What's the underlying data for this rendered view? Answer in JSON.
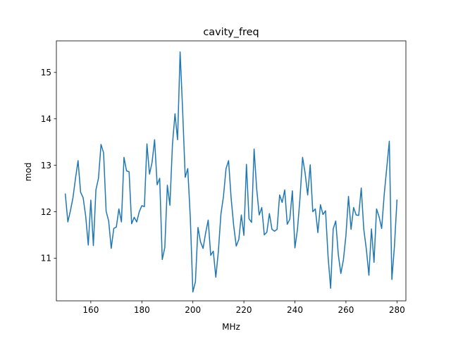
{
  "chart_data": {
    "type": "line",
    "title": "cavity_freq",
    "xlabel": "MHz",
    "ylabel": "mod",
    "xlim": [
      146.5,
      283.5
    ],
    "ylim": [
      10.08,
      15.68
    ],
    "x_ticks": [
      160,
      180,
      200,
      220,
      240,
      260,
      280
    ],
    "y_ticks": [
      11,
      12,
      13,
      14,
      15
    ],
    "grid": false,
    "series": [
      {
        "color": "#1f77b4",
        "x": [
          150,
          151,
          152,
          153,
          154,
          155,
          156,
          157,
          158,
          159,
          160,
          161,
          162,
          163,
          164,
          165,
          166,
          167,
          168,
          169,
          170,
          171,
          172,
          173,
          174,
          175,
          176,
          177,
          178,
          179,
          180,
          181,
          182,
          183,
          184,
          185,
          186,
          187,
          188,
          189,
          190,
          191,
          192,
          193,
          194,
          195,
          196,
          197,
          198,
          199,
          200,
          201,
          202,
          203,
          204,
          205,
          206,
          207,
          208,
          209,
          210,
          211,
          212,
          213,
          214,
          215,
          216,
          217,
          218,
          219,
          220,
          221,
          222,
          223,
          224,
          225,
          226,
          227,
          228,
          229,
          230,
          231,
          232,
          233,
          234,
          235,
          236,
          237,
          238,
          239,
          240,
          241,
          242,
          243,
          244,
          245,
          246,
          247,
          248,
          249,
          250,
          251,
          252,
          253,
          254,
          255,
          256,
          257,
          258,
          259,
          260,
          261,
          262,
          263,
          264,
          265,
          266,
          267,
          268,
          269,
          270,
          271,
          272,
          273,
          274,
          275,
          276,
          277,
          278,
          279,
          280
        ],
        "y": [
          12.38,
          11.78,
          12.02,
          12.3,
          12.72,
          13.1,
          12.42,
          12.3,
          11.9,
          11.28,
          12.25,
          11.27,
          12.47,
          12.72,
          13.45,
          13.27,
          12.01,
          11.8,
          11.21,
          11.64,
          11.67,
          12.06,
          11.78,
          13.17,
          12.88,
          12.86,
          11.74,
          11.88,
          11.78,
          12.0,
          12.13,
          12.11,
          13.46,
          12.81,
          13.06,
          13.55,
          12.58,
          12.72,
          10.97,
          11.23,
          12.57,
          12.14,
          13.45,
          14.11,
          13.55,
          15.44,
          14.17,
          12.74,
          12.93,
          11.87,
          10.27,
          10.49,
          11.66,
          11.35,
          11.21,
          11.54,
          11.82,
          11.06,
          11.15,
          10.59,
          11.15,
          11.95,
          12.33,
          12.93,
          13.1,
          12.29,
          11.7,
          11.26,
          11.4,
          11.93,
          11.49,
          13.02,
          11.85,
          11.77,
          13.35,
          12.5,
          11.93,
          12.09,
          11.5,
          11.56,
          11.96,
          11.62,
          11.58,
          11.62,
          12.36,
          12.2,
          12.47,
          11.73,
          11.84,
          12.45,
          11.22,
          11.62,
          12.3,
          13.17,
          12.83,
          12.36,
          13.01,
          12.0,
          12.06,
          11.55,
          12.15,
          11.94,
          12.02,
          11.03,
          10.35,
          11.63,
          11.8,
          11.08,
          10.67,
          10.96,
          11.49,
          12.33,
          11.62,
          12.09,
          11.93,
          11.92,
          12.51,
          11.62,
          11.19,
          10.63,
          11.63,
          10.91,
          12.06,
          11.89,
          11.64,
          12.37,
          12.95,
          13.52,
          10.54,
          11.25,
          12.25
        ]
      }
    ]
  }
}
